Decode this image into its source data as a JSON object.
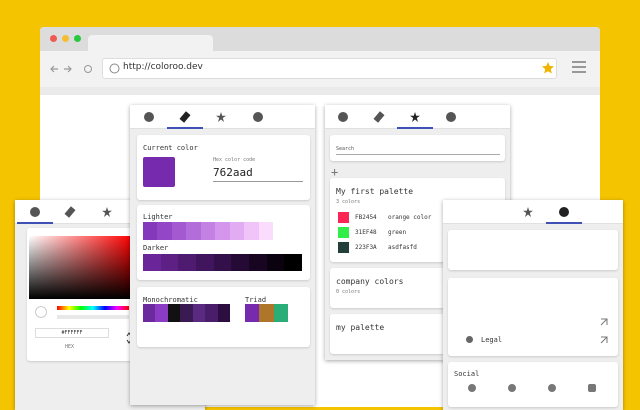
{
  "browser": {
    "url": "http://coloroo.dev"
  },
  "picker_panel": {
    "hex_value": "#FFFFFF",
    "format": "HEX"
  },
  "color_panel": {
    "current_color_label": "Current color",
    "hex_label": "Hex color code",
    "hex_value": "762aad",
    "current_color": "#762aad",
    "lighter_label": "Lighter",
    "lighter_colors": [
      "#8438bb",
      "#9347c6",
      "#a35ad0",
      "#b36dda",
      "#c381e3",
      "#d396ec",
      "#e2acf3",
      "#f0c4f9",
      "#fadcfd"
    ],
    "darker_label": "Darker",
    "darker_colors": [
      "#6a2599",
      "#5d2085",
      "#4f1b71",
      "#41155d",
      "#331049",
      "#250a35",
      "#180521",
      "#0b0210",
      "#000000"
    ],
    "monochromatic_label": "Monochromatic",
    "monochromatic_colors": [
      "#6b2a9e",
      "#8a3cc4",
      "#111111",
      "#3a1a52",
      "#5a2a80",
      "#4a1d6b",
      "#2c0f40"
    ],
    "triad_label": "Triad",
    "triad_colors": [
      "#762aad",
      "#ad762a",
      "#2aad76"
    ]
  },
  "palette_panel": {
    "search_placeholder": "Search",
    "palettes": [
      {
        "name": "My first palette",
        "count": "3 colors",
        "colors": [
          {
            "code": "FB2454",
            "name": "orange color",
            "color": "#fb2454"
          },
          {
            "code": "31EF48",
            "name": "green",
            "color": "#31ef48"
          },
          {
            "code": "223F3A",
            "name": "asdfasfd",
            "color": "#223f3a"
          }
        ]
      },
      {
        "name": "company colors",
        "count": "0 colors",
        "colors": []
      },
      {
        "name": "my palette",
        "count": null,
        "colors": []
      }
    ]
  },
  "about_panel": {
    "legal": "Legal",
    "social": "Social"
  }
}
